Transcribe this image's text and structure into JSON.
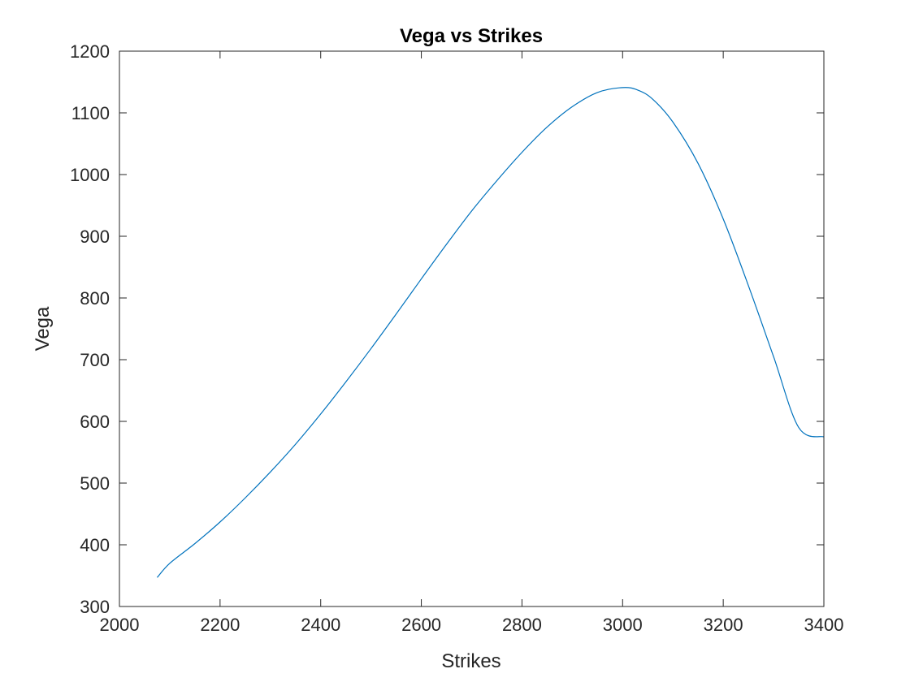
{
  "chart_data": {
    "type": "line",
    "title": "Vega vs Strikes",
    "xlabel": "Strikes",
    "ylabel": "Vega",
    "xlim": [
      2000,
      3400
    ],
    "ylim": [
      300,
      1200
    ],
    "xticks": [
      2000,
      2200,
      2400,
      2600,
      2800,
      3000,
      3200,
      3400
    ],
    "yticks": [
      300,
      400,
      500,
      600,
      700,
      800,
      900,
      1000,
      1100,
      1200
    ],
    "grid": false,
    "line_color": "#0072BD",
    "series": [
      {
        "x": [
          2075,
          2100,
          2150,
          2200,
          2250,
          2300,
          2350,
          2400,
          2450,
          2500,
          2550,
          2600,
          2650,
          2700,
          2750,
          2800,
          2850,
          2900,
          2950,
          3000,
          3030,
          3060,
          3100,
          3150,
          3200,
          3250,
          3300,
          3350,
          3400
        ],
        "values": [
          347,
          370,
          402,
          437,
          476,
          518,
          563,
          612,
          664,
          718,
          774,
          831,
          887,
          941,
          990,
          1036,
          1077,
          1110,
          1133,
          1141,
          1137,
          1122,
          1085,
          1018,
          928,
          820,
          705,
          590,
          575
        ]
      }
    ]
  }
}
